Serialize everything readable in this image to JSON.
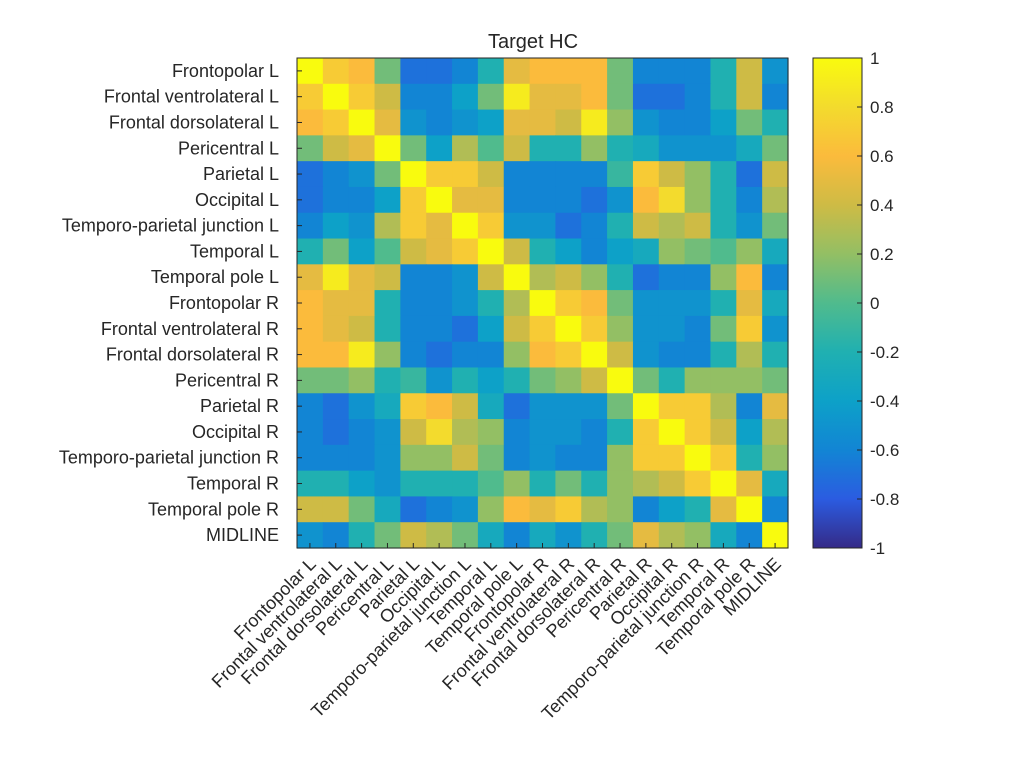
{
  "chart_data": {
    "type": "heatmap",
    "title": "Target HC",
    "labels": [
      "Frontopolar L",
      "Frontal ventrolateral L",
      "Frontal dorsolateral L",
      "Pericentral L",
      "Parietal L",
      "Occipital L",
      "Temporo-parietal junction L",
      "Temporal L",
      "Temporal pole L",
      "Frontopolar R",
      "Frontal ventrolateral R",
      "Frontal dorsolateral R",
      "Pericentral R",
      "Parietal R",
      "Occipital R",
      "Temporo-parietal junction R",
      "Temporal R",
      "Temporal pole R",
      "MIDLINE"
    ],
    "matrix": [
      [
        1,
        0.7,
        0.6,
        0.1,
        -0.7,
        -0.7,
        -0.6,
        -0.2,
        0.5,
        0.6,
        0.6,
        0.6,
        0.1,
        -0.6,
        -0.6,
        -0.6,
        -0.2,
        0.4,
        -0.5
      ],
      [
        0.7,
        1,
        0.7,
        0.4,
        -0.6,
        -0.6,
        -0.4,
        0.1,
        0.9,
        0.5,
        0.5,
        0.6,
        0.1,
        -0.7,
        -0.7,
        -0.6,
        -0.2,
        0.4,
        -0.6
      ],
      [
        0.6,
        0.7,
        1,
        0.5,
        -0.5,
        -0.6,
        -0.5,
        -0.4,
        0.5,
        0.5,
        0.4,
        0.9,
        0.2,
        -0.5,
        -0.6,
        -0.6,
        -0.4,
        0.1,
        -0.2
      ],
      [
        0.1,
        0.4,
        0.5,
        1,
        0.1,
        -0.4,
        0.3,
        0,
        0.4,
        -0.2,
        -0.2,
        0.2,
        -0.2,
        -0.3,
        -0.5,
        -0.5,
        -0.5,
        -0.3,
        0.1
      ],
      [
        -0.7,
        -0.6,
        -0.5,
        0.1,
        1,
        0.7,
        0.7,
        0.4,
        -0.6,
        -0.6,
        -0.6,
        -0.6,
        -0.1,
        0.7,
        0.4,
        0.2,
        -0.2,
        -0.7,
        0.4
      ],
      [
        -0.7,
        -0.6,
        -0.6,
        -0.4,
        0.7,
        1,
        0.5,
        0.5,
        -0.6,
        -0.6,
        -0.6,
        -0.7,
        -0.5,
        0.6,
        0.8,
        0.2,
        -0.2,
        -0.6,
        0.3
      ],
      [
        -0.6,
        -0.4,
        -0.5,
        0.3,
        0.7,
        0.5,
        1,
        0.7,
        -0.5,
        -0.5,
        -0.7,
        -0.6,
        -0.2,
        0.4,
        0.3,
        0.4,
        -0.2,
        -0.5,
        0.1
      ],
      [
        -0.2,
        0.1,
        -0.4,
        0,
        0.4,
        0.5,
        0.7,
        1,
        0.4,
        -0.2,
        -0.4,
        -0.6,
        -0.4,
        -0.3,
        0.2,
        0.1,
        0,
        0.2,
        -0.3
      ],
      [
        0.5,
        0.9,
        0.5,
        0.4,
        -0.6,
        -0.6,
        -0.5,
        0.4,
        1,
        0.3,
        0.4,
        0.2,
        -0.2,
        -0.7,
        -0.6,
        -0.6,
        0.2,
        0.6,
        -0.6
      ],
      [
        0.6,
        0.5,
        0.5,
        -0.2,
        -0.6,
        -0.6,
        -0.5,
        -0.2,
        0.3,
        1,
        0.7,
        0.6,
        0.1,
        -0.5,
        -0.5,
        -0.5,
        -0.2,
        0.5,
        -0.3
      ],
      [
        0.6,
        0.5,
        0.4,
        -0.2,
        -0.6,
        -0.6,
        -0.7,
        -0.4,
        0.4,
        0.7,
        1,
        0.7,
        0.2,
        -0.5,
        -0.5,
        -0.6,
        0.1,
        0.7,
        -0.5
      ],
      [
        0.6,
        0.6,
        0.9,
        0.2,
        -0.6,
        -0.7,
        -0.6,
        -0.6,
        0.2,
        0.6,
        0.7,
        1,
        0.4,
        -0.5,
        -0.6,
        -0.6,
        -0.2,
        0.3,
        -0.2
      ],
      [
        0.1,
        0.1,
        0.2,
        -0.2,
        -0.1,
        -0.5,
        -0.2,
        -0.4,
        -0.2,
        0.1,
        0.2,
        0.4,
        1,
        0.1,
        -0.2,
        0.2,
        0.2,
        0.2,
        0.1
      ],
      [
        -0.6,
        -0.7,
        -0.5,
        -0.3,
        0.7,
        0.6,
        0.4,
        -0.3,
        -0.7,
        -0.5,
        -0.5,
        -0.5,
        0.1,
        1,
        0.7,
        0.7,
        0.3,
        -0.6,
        0.5
      ],
      [
        -0.6,
        -0.7,
        -0.6,
        -0.5,
        0.4,
        0.8,
        0.3,
        0.2,
        -0.6,
        -0.5,
        -0.5,
        -0.6,
        -0.2,
        0.7,
        1,
        0.7,
        0.4,
        -0.4,
        0.3
      ],
      [
        -0.6,
        -0.6,
        -0.6,
        -0.5,
        0.2,
        0.2,
        0.4,
        0.1,
        -0.6,
        -0.5,
        -0.6,
        -0.6,
        0.2,
        0.7,
        0.7,
        1,
        0.7,
        -0.2,
        0.2
      ],
      [
        -0.2,
        -0.2,
        -0.4,
        -0.5,
        -0.2,
        -0.2,
        -0.2,
        0,
        0.2,
        -0.2,
        0.1,
        -0.2,
        0.2,
        0.3,
        0.4,
        0.7,
        1,
        0.5,
        -0.3
      ],
      [
        0.4,
        0.4,
        0.1,
        -0.3,
        -0.7,
        -0.6,
        -0.5,
        0.2,
        0.6,
        0.5,
        0.7,
        0.3,
        0.2,
        -0.6,
        -0.4,
        -0.2,
        0.5,
        1,
        -0.6
      ],
      [
        -0.5,
        -0.6,
        -0.2,
        0.1,
        0.4,
        0.3,
        0.1,
        -0.3,
        -0.6,
        -0.3,
        -0.5,
        -0.2,
        0.1,
        0.5,
        0.3,
        0.2,
        -0.3,
        -0.6,
        1
      ]
    ],
    "colorbar": {
      "range": [
        -1,
        1
      ],
      "tick_values": [
        1,
        0.8,
        0.6,
        0.4,
        0.2,
        0,
        -0.2,
        -0.4,
        -0.6,
        -0.8,
        -1
      ],
      "tick_labels": [
        "1",
        "0.8",
        "0.6",
        "0.4",
        "0.2",
        "0",
        "-0.2",
        "-0.4",
        "-0.6",
        "-0.8",
        "-1"
      ],
      "colormap": "parula",
      "colormap_stops": [
        "#352a87",
        "#2b5ce1",
        "#1285d4",
        "#0da1c8",
        "#20b0b1",
        "#50bb8d",
        "#93bf64",
        "#cebb45",
        "#fbbb3c",
        "#f3db2d",
        "#f9fb0e"
      ]
    }
  }
}
